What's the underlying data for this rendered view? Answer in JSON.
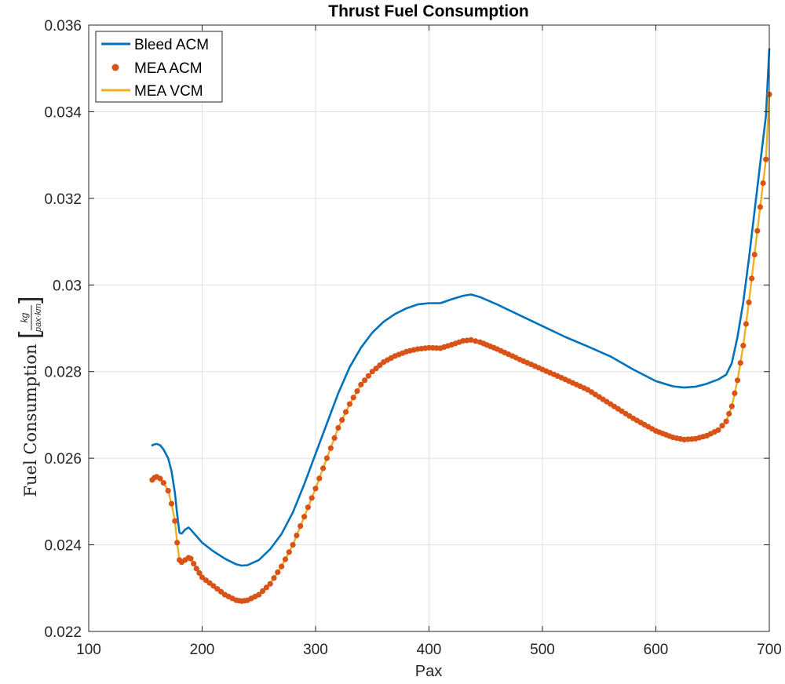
{
  "chart_data": {
    "type": "line",
    "title": "Thrust Fuel Consumption",
    "xlabel": "Pax",
    "ylabel": "Fuel Consumption",
    "ylabel_unit_num": "kg",
    "ylabel_unit_den": "pax·km",
    "xlim": [
      100,
      700
    ],
    "ylim": [
      0.022,
      0.036
    ],
    "xticks": [
      100,
      200,
      300,
      400,
      500,
      600,
      700
    ],
    "yticks": [
      0.022,
      0.024,
      0.026,
      0.028,
      0.03,
      0.032,
      0.034,
      0.036
    ],
    "xtick_labels": [
      "100",
      "200",
      "300",
      "400",
      "500",
      "600",
      "700"
    ],
    "ytick_labels": [
      "0.022",
      "0.024",
      "0.026",
      "0.028",
      "0.03",
      "0.032",
      "0.034",
      "0.036"
    ],
    "grid": true,
    "legend_position": "top-left",
    "series": [
      {
        "name": "Bleed ACM",
        "color": "#0072BD",
        "style": "line",
        "points": [
          [
            156,
            0.0263
          ],
          [
            158,
            0.02632
          ],
          [
            160,
            0.02633
          ],
          [
            163,
            0.0263
          ],
          [
            166,
            0.0262
          ],
          [
            170,
            0.026
          ],
          [
            173,
            0.0257
          ],
          [
            176,
            0.0252
          ],
          [
            178,
            0.0247
          ],
          [
            180,
            0.02428
          ],
          [
            182,
            0.02426
          ],
          [
            185,
            0.02435
          ],
          [
            188,
            0.0244
          ],
          [
            190,
            0.02435
          ],
          [
            195,
            0.0242
          ],
          [
            200,
            0.02405
          ],
          [
            210,
            0.02385
          ],
          [
            220,
            0.02368
          ],
          [
            230,
            0.02355
          ],
          [
            235,
            0.02352
          ],
          [
            240,
            0.02353
          ],
          [
            250,
            0.02365
          ],
          [
            260,
            0.0239
          ],
          [
            270,
            0.02425
          ],
          [
            280,
            0.02475
          ],
          [
            290,
            0.0254
          ],
          [
            300,
            0.0261
          ],
          [
            310,
            0.0268
          ],
          [
            320,
            0.0275
          ],
          [
            330,
            0.0281
          ],
          [
            340,
            0.02855
          ],
          [
            350,
            0.0289
          ],
          [
            360,
            0.02915
          ],
          [
            370,
            0.02933
          ],
          [
            380,
            0.02946
          ],
          [
            390,
            0.02955
          ],
          [
            400,
            0.02958
          ],
          [
            410,
            0.02958
          ],
          [
            420,
            0.02967
          ],
          [
            430,
            0.02975
          ],
          [
            437,
            0.02978
          ],
          [
            445,
            0.02972
          ],
          [
            460,
            0.02955
          ],
          [
            480,
            0.0293
          ],
          [
            500,
            0.02905
          ],
          [
            520,
            0.0288
          ],
          [
            540,
            0.02858
          ],
          [
            560,
            0.02835
          ],
          [
            580,
            0.02805
          ],
          [
            600,
            0.02778
          ],
          [
            615,
            0.02766
          ],
          [
            625,
            0.02763
          ],
          [
            635,
            0.02765
          ],
          [
            645,
            0.02772
          ],
          [
            655,
            0.02782
          ],
          [
            662,
            0.02793
          ],
          [
            667,
            0.0282
          ],
          [
            672,
            0.0288
          ],
          [
            677,
            0.0296
          ],
          [
            682,
            0.0306
          ],
          [
            687,
            0.0317
          ],
          [
            692,
            0.0328
          ],
          [
            697,
            0.0339
          ],
          [
            700,
            0.03545
          ]
        ]
      },
      {
        "name": "MEA ACM",
        "color": "#D95319",
        "style": "markers",
        "points": [
          [
            156,
            0.0255
          ],
          [
            158,
            0.02555
          ],
          [
            160,
            0.02557
          ],
          [
            163,
            0.02553
          ],
          [
            166,
            0.02543
          ],
          [
            170,
            0.02525
          ],
          [
            173,
            0.02495
          ],
          [
            176,
            0.02455
          ],
          [
            178,
            0.02405
          ],
          [
            180,
            0.02365
          ],
          [
            182,
            0.0236
          ],
          [
            185,
            0.02365
          ],
          [
            188,
            0.0237
          ],
          [
            190,
            0.02368
          ],
          [
            195,
            0.02345
          ],
          [
            200,
            0.02325
          ],
          [
            210,
            0.02305
          ],
          [
            220,
            0.02285
          ],
          [
            230,
            0.02272
          ],
          [
            235,
            0.0227
          ],
          [
            240,
            0.02272
          ],
          [
            250,
            0.02285
          ],
          [
            260,
            0.0231
          ],
          [
            270,
            0.0235
          ],
          [
            280,
            0.024
          ],
          [
            290,
            0.02465
          ],
          [
            300,
            0.0253
          ],
          [
            310,
            0.026
          ],
          [
            320,
            0.0267
          ],
          [
            330,
            0.02725
          ],
          [
            340,
            0.0277
          ],
          [
            350,
            0.028
          ],
          [
            360,
            0.02822
          ],
          [
            370,
            0.02836
          ],
          [
            380,
            0.02846
          ],
          [
            390,
            0.02852
          ],
          [
            400,
            0.02855
          ],
          [
            410,
            0.02854
          ],
          [
            420,
            0.02862
          ],
          [
            430,
            0.02871
          ],
          [
            437,
            0.02873
          ],
          [
            445,
            0.02868
          ],
          [
            460,
            0.02852
          ],
          [
            480,
            0.02828
          ],
          [
            500,
            0.02805
          ],
          [
            520,
            0.02782
          ],
          [
            540,
            0.02758
          ],
          [
            560,
            0.02725
          ],
          [
            580,
            0.02692
          ],
          [
            600,
            0.02663
          ],
          [
            615,
            0.02648
          ],
          [
            625,
            0.02643
          ],
          [
            635,
            0.02645
          ],
          [
            645,
            0.02652
          ],
          [
            655,
            0.02665
          ],
          [
            662,
            0.02685
          ],
          [
            667,
            0.0272
          ],
          [
            672,
            0.0278
          ],
          [
            677,
            0.0286
          ],
          [
            682,
            0.0296
          ],
          [
            687,
            0.0307
          ],
          [
            692,
            0.0318
          ],
          [
            697,
            0.0329
          ],
          [
            700,
            0.0344
          ]
        ]
      },
      {
        "name": "MEA VCM",
        "color": "#EDB120",
        "style": "line",
        "points": [
          [
            156,
            0.0255
          ],
          [
            158,
            0.02555
          ],
          [
            160,
            0.02557
          ],
          [
            163,
            0.02553
          ],
          [
            166,
            0.02543
          ],
          [
            170,
            0.02525
          ],
          [
            173,
            0.02495
          ],
          [
            176,
            0.02455
          ],
          [
            178,
            0.02405
          ],
          [
            180,
            0.02365
          ],
          [
            182,
            0.0236
          ],
          [
            185,
            0.02365
          ],
          [
            188,
            0.0237
          ],
          [
            190,
            0.02368
          ],
          [
            195,
            0.02345
          ],
          [
            200,
            0.02325
          ],
          [
            210,
            0.02305
          ],
          [
            220,
            0.02285
          ],
          [
            230,
            0.02272
          ],
          [
            235,
            0.0227
          ],
          [
            240,
            0.02272
          ],
          [
            250,
            0.02285
          ],
          [
            260,
            0.0231
          ],
          [
            270,
            0.0235
          ],
          [
            280,
            0.024
          ],
          [
            290,
            0.02465
          ],
          [
            300,
            0.0253
          ],
          [
            310,
            0.026
          ],
          [
            320,
            0.0267
          ],
          [
            330,
            0.02725
          ],
          [
            340,
            0.0277
          ],
          [
            350,
            0.028
          ],
          [
            360,
            0.02822
          ],
          [
            370,
            0.02836
          ],
          [
            380,
            0.02846
          ],
          [
            390,
            0.02852
          ],
          [
            400,
            0.02855
          ],
          [
            410,
            0.02854
          ],
          [
            420,
            0.02862
          ],
          [
            430,
            0.02871
          ],
          [
            437,
            0.02873
          ],
          [
            445,
            0.02868
          ],
          [
            460,
            0.02852
          ],
          [
            480,
            0.02828
          ],
          [
            500,
            0.02805
          ],
          [
            520,
            0.02782
          ],
          [
            540,
            0.02758
          ],
          [
            560,
            0.02725
          ],
          [
            580,
            0.02692
          ],
          [
            600,
            0.02663
          ],
          [
            615,
            0.02648
          ],
          [
            625,
            0.02643
          ],
          [
            635,
            0.02645
          ],
          [
            645,
            0.02652
          ],
          [
            655,
            0.02665
          ],
          [
            662,
            0.02685
          ],
          [
            667,
            0.0272
          ],
          [
            672,
            0.0278
          ],
          [
            677,
            0.0286
          ],
          [
            682,
            0.0296
          ],
          [
            687,
            0.0307
          ],
          [
            692,
            0.0318
          ],
          [
            697,
            0.0329
          ],
          [
            700,
            0.0344
          ]
        ]
      }
    ]
  }
}
